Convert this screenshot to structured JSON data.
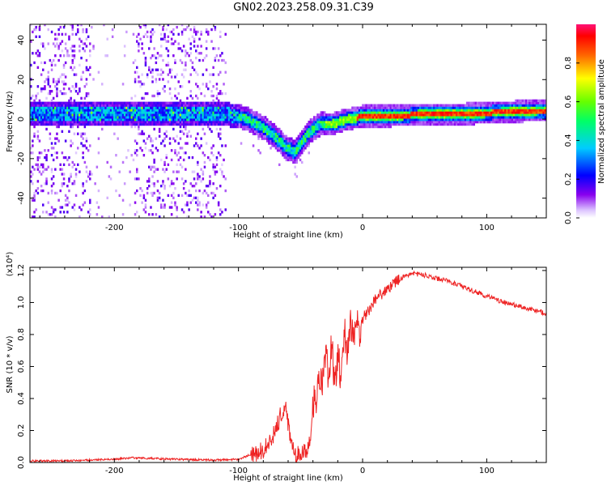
{
  "figure": {
    "title": "GN02.2023.258.09.31.C39"
  },
  "chart_data": [
    {
      "type": "heatmap",
      "xlabel": "Height of straight line (km)",
      "ylabel": "Frequency (Hz)",
      "xlim": [
        -268,
        148
      ],
      "ylim": [
        -50,
        48
      ],
      "xticks": [
        -200,
        -100,
        0,
        100
      ],
      "xtick_labels": [
        "-200",
        "-100",
        "0",
        "100"
      ],
      "yticks": [
        -40,
        -20,
        0,
        20,
        40
      ],
      "ytick_labels": [
        "-40",
        "-20",
        "0",
        "20",
        "40"
      ],
      "colorbar": {
        "label": "Normalized spectral amplitude",
        "range": [
          0,
          1
        ],
        "ticks": [
          0.0,
          0.2,
          0.4,
          0.6,
          0.8
        ],
        "tick_labels": [
          "0.0",
          "0.2",
          "0.4",
          "0.6",
          "0.8"
        ],
        "colors": [
          "#ffffff",
          "#cc99ff",
          "#7700ee",
          "#0000ff",
          "#00ffff",
          "#00ff00",
          "#ffff00",
          "#ff8800",
          "#ff0000",
          "#ff1177"
        ]
      },
      "band_center": {
        "x": [
          -268,
          -200,
          -150,
          -110,
          -95,
          -80,
          -70,
          -62,
          -55,
          -45,
          -35,
          -25,
          -15,
          0,
          20,
          50,
          80,
          110,
          148
        ],
        "y": [
          2,
          2,
          2,
          2,
          0,
          -5,
          -10,
          -15,
          -17,
          -8,
          -3,
          -3,
          -1,
          1,
          1,
          2,
          2,
          3,
          4
        ]
      },
      "grid": false
    },
    {
      "type": "line",
      "xlabel": "Height of straight line (km)",
      "ylabel": "SNR (10 * v/v)",
      "y_multiplier": "(x10⁴)",
      "xlim": [
        -268,
        148
      ],
      "ylim": [
        0,
        1.22
      ],
      "xticks": [
        -200,
        -100,
        0,
        100
      ],
      "xtick_labels": [
        "-200",
        "-100",
        "0",
        "100"
      ],
      "yticks": [
        0.0,
        0.2,
        0.4,
        0.6,
        0.8,
        1.0,
        1.2
      ],
      "ytick_labels": [
        "0.0",
        "0.2",
        "0.4",
        "0.6",
        "0.8",
        "1.0",
        "1.2"
      ],
      "series": [
        {
          "color": "#ee2222",
          "x": [
            -268,
            -240,
            -200,
            -185,
            -150,
            -120,
            -100,
            -90,
            -80,
            -75,
            -70,
            -66,
            -62,
            -60,
            -57,
            -55,
            -52,
            -48,
            -45,
            -42,
            -40,
            -37,
            -35,
            -33,
            -30,
            -27,
            -25,
            -22,
            -20,
            -17,
            -15,
            -12,
            -10,
            -7,
            -5,
            -2,
            0,
            5,
            10,
            20,
            30,
            40,
            50,
            60,
            70,
            80,
            90,
            100,
            110,
            120,
            130,
            140,
            148
          ],
          "y": [
            0.01,
            0.01,
            0.02,
            0.03,
            0.02,
            0.015,
            0.02,
            0.05,
            0.08,
            0.12,
            0.2,
            0.3,
            0.38,
            0.25,
            0.12,
            0.06,
            0.05,
            0.08,
            0.04,
            0.15,
            0.4,
            0.35,
            0.6,
            0.45,
            0.7,
            0.5,
            0.75,
            0.45,
            0.7,
            0.5,
            0.85,
            0.65,
            0.9,
            0.75,
            0.95,
            0.8,
            0.9,
            0.95,
            1.02,
            1.08,
            1.15,
            1.18,
            1.17,
            1.15,
            1.13,
            1.1,
            1.07,
            1.04,
            1.01,
            0.99,
            0.97,
            0.95,
            0.93
          ]
        }
      ],
      "grid": false
    }
  ]
}
